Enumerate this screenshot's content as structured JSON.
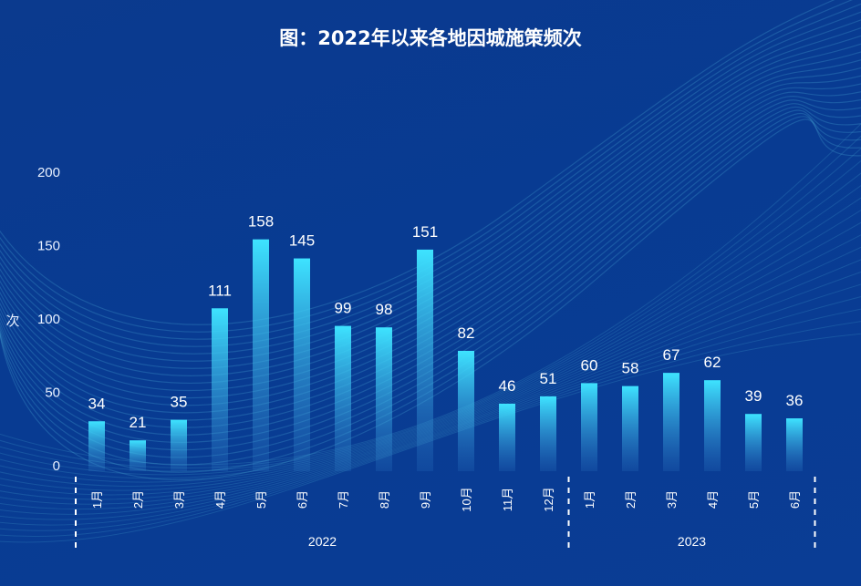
{
  "chart_data": {
    "type": "bar",
    "title": "图：2022年以来各地因城施策频次",
    "ylabel": "次",
    "ylim": [
      0,
      200
    ],
    "yticks": [
      0,
      50,
      100,
      150,
      200
    ],
    "grid": false,
    "categories": [
      "1月",
      "2月",
      "3月",
      "4月",
      "5月",
      "6月",
      "7月",
      "8月",
      "9月",
      "10月",
      "11月",
      "12月",
      "1月",
      "2月",
      "3月",
      "4月",
      "5月",
      "6月"
    ],
    "groups": [
      {
        "label": "2022",
        "count": 12
      },
      {
        "label": "2023",
        "count": 6
      }
    ],
    "values": [
      34,
      21,
      35,
      111,
      158,
      145,
      99,
      98,
      151,
      82,
      46,
      51,
      60,
      58,
      67,
      62,
      39,
      36
    ],
    "colors": {
      "bar_top": "#3ee3ff",
      "bar_bottom": "#3a8fd8",
      "background": "#0a3a8f"
    }
  }
}
